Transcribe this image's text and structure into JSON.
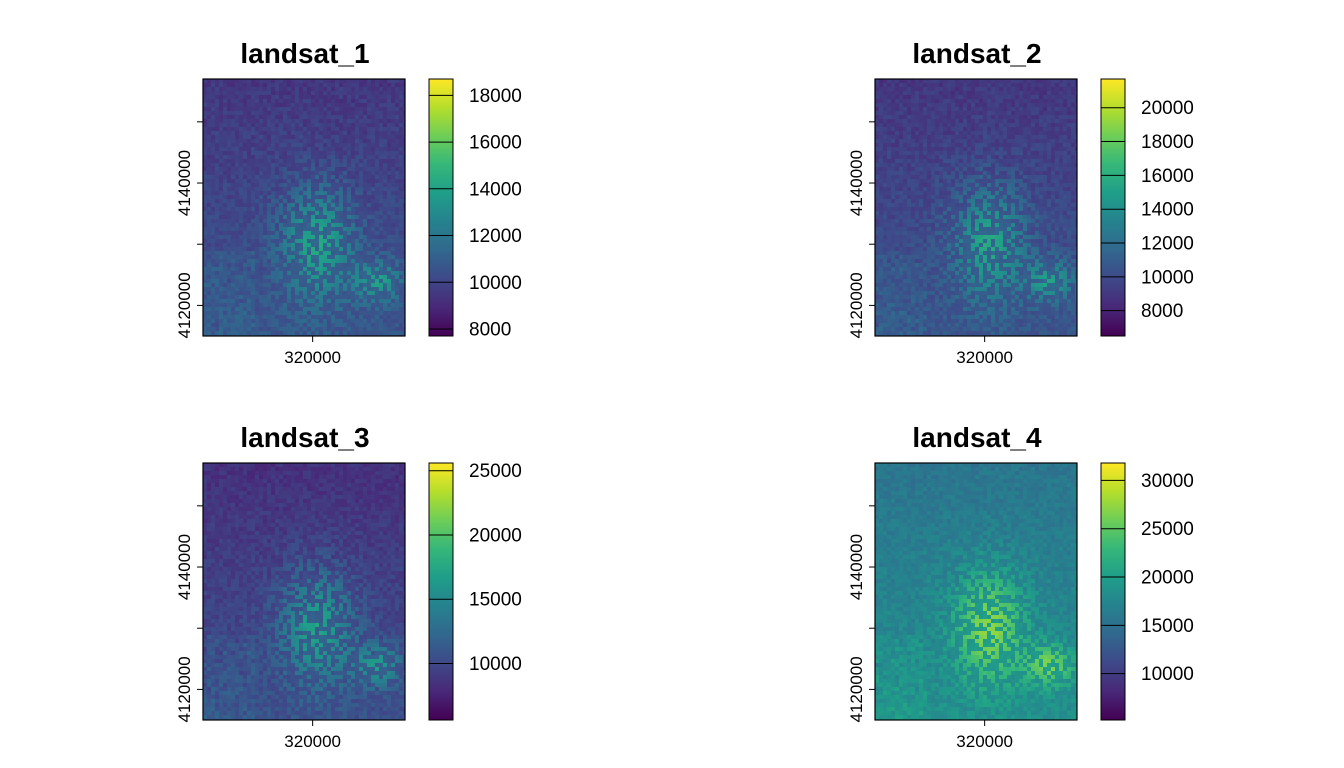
{
  "colormap": [
    "#440154",
    "#482878",
    "#3e4989",
    "#31688e",
    "#26828e",
    "#1f9e89",
    "#35b779",
    "#6ece58",
    "#b5de2b",
    "#fde725"
  ],
  "chart_data": [
    {
      "type": "heatmap",
      "title": "landsat_1",
      "x_ticks": [
        320000
      ],
      "y_ticks": [
        4140000,
        4120000
      ],
      "xlim": [
        301000,
        336000
      ],
      "ylim": [
        4115000,
        4157000
      ],
      "colorbar": {
        "min": 7700,
        "max": 18700,
        "ticks": [
          8000,
          10000,
          12000,
          14000,
          16000,
          18000
        ]
      },
      "mean_level": 0.22
    },
    {
      "type": "heatmap",
      "title": "landsat_2",
      "x_ticks": [
        320000
      ],
      "y_ticks": [
        4140000,
        4120000
      ],
      "xlim": [
        301000,
        336000
      ],
      "ylim": [
        4115000,
        4157000
      ],
      "colorbar": {
        "min": 6500,
        "max": 21700,
        "ticks": [
          8000,
          10000,
          12000,
          14000,
          16000,
          18000,
          20000
        ]
      },
      "mean_level": 0.22
    },
    {
      "type": "heatmap",
      "title": "landsat_3",
      "x_ticks": [
        320000
      ],
      "y_ticks": [
        4140000,
        4120000
      ],
      "xlim": [
        301000,
        336000
      ],
      "ylim": [
        4115000,
        4157000
      ],
      "colorbar": {
        "min": 5600,
        "max": 25600,
        "ticks": [
          10000,
          15000,
          20000,
          25000
        ]
      },
      "mean_level": 0.2
    },
    {
      "type": "heatmap",
      "title": "landsat_4",
      "x_ticks": [
        320000
      ],
      "y_ticks": [
        4140000,
        4120000
      ],
      "xlim": [
        301000,
        336000
      ],
      "ylim": [
        4115000,
        4157000
      ],
      "colorbar": {
        "min": 5200,
        "max": 31800,
        "ticks": [
          10000,
          15000,
          20000,
          25000,
          30000
        ]
      },
      "mean_level": 0.45
    }
  ]
}
